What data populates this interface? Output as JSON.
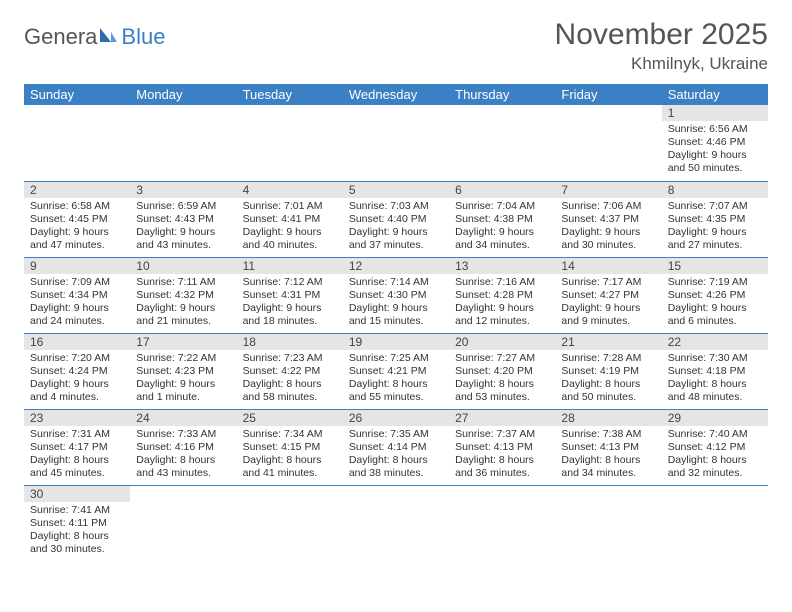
{
  "logo": {
    "text1": "Genera",
    "text2": "Blue"
  },
  "title": "November 2025",
  "location": "Khmilnyk, Ukraine",
  "colors": {
    "header_bg": "#3b7fc4",
    "header_text": "#ffffff",
    "daynum_bg": "#e5e5e5",
    "border": "#3b7fc4",
    "body_text": "#333333",
    "title_text": "#555555"
  },
  "weekdays": [
    "Sunday",
    "Monday",
    "Tuesday",
    "Wednesday",
    "Thursday",
    "Friday",
    "Saturday"
  ],
  "weeks": [
    [
      null,
      null,
      null,
      null,
      null,
      null,
      {
        "n": "1",
        "sr": "6:56 AM",
        "ss": "4:46 PM",
        "dl": "9 hours and 50 minutes."
      }
    ],
    [
      {
        "n": "2",
        "sr": "6:58 AM",
        "ss": "4:45 PM",
        "dl": "9 hours and 47 minutes."
      },
      {
        "n": "3",
        "sr": "6:59 AM",
        "ss": "4:43 PM",
        "dl": "9 hours and 43 minutes."
      },
      {
        "n": "4",
        "sr": "7:01 AM",
        "ss": "4:41 PM",
        "dl": "9 hours and 40 minutes."
      },
      {
        "n": "5",
        "sr": "7:03 AM",
        "ss": "4:40 PM",
        "dl": "9 hours and 37 minutes."
      },
      {
        "n": "6",
        "sr": "7:04 AM",
        "ss": "4:38 PM",
        "dl": "9 hours and 34 minutes."
      },
      {
        "n": "7",
        "sr": "7:06 AM",
        "ss": "4:37 PM",
        "dl": "9 hours and 30 minutes."
      },
      {
        "n": "8",
        "sr": "7:07 AM",
        "ss": "4:35 PM",
        "dl": "9 hours and 27 minutes."
      }
    ],
    [
      {
        "n": "9",
        "sr": "7:09 AM",
        "ss": "4:34 PM",
        "dl": "9 hours and 24 minutes."
      },
      {
        "n": "10",
        "sr": "7:11 AM",
        "ss": "4:32 PM",
        "dl": "9 hours and 21 minutes."
      },
      {
        "n": "11",
        "sr": "7:12 AM",
        "ss": "4:31 PM",
        "dl": "9 hours and 18 minutes."
      },
      {
        "n": "12",
        "sr": "7:14 AM",
        "ss": "4:30 PM",
        "dl": "9 hours and 15 minutes."
      },
      {
        "n": "13",
        "sr": "7:16 AM",
        "ss": "4:28 PM",
        "dl": "9 hours and 12 minutes."
      },
      {
        "n": "14",
        "sr": "7:17 AM",
        "ss": "4:27 PM",
        "dl": "9 hours and 9 minutes."
      },
      {
        "n": "15",
        "sr": "7:19 AM",
        "ss": "4:26 PM",
        "dl": "9 hours and 6 minutes."
      }
    ],
    [
      {
        "n": "16",
        "sr": "7:20 AM",
        "ss": "4:24 PM",
        "dl": "9 hours and 4 minutes."
      },
      {
        "n": "17",
        "sr": "7:22 AM",
        "ss": "4:23 PM",
        "dl": "9 hours and 1 minute."
      },
      {
        "n": "18",
        "sr": "7:23 AM",
        "ss": "4:22 PM",
        "dl": "8 hours and 58 minutes."
      },
      {
        "n": "19",
        "sr": "7:25 AM",
        "ss": "4:21 PM",
        "dl": "8 hours and 55 minutes."
      },
      {
        "n": "20",
        "sr": "7:27 AM",
        "ss": "4:20 PM",
        "dl": "8 hours and 53 minutes."
      },
      {
        "n": "21",
        "sr": "7:28 AM",
        "ss": "4:19 PM",
        "dl": "8 hours and 50 minutes."
      },
      {
        "n": "22",
        "sr": "7:30 AM",
        "ss": "4:18 PM",
        "dl": "8 hours and 48 minutes."
      }
    ],
    [
      {
        "n": "23",
        "sr": "7:31 AM",
        "ss": "4:17 PM",
        "dl": "8 hours and 45 minutes."
      },
      {
        "n": "24",
        "sr": "7:33 AM",
        "ss": "4:16 PM",
        "dl": "8 hours and 43 minutes."
      },
      {
        "n": "25",
        "sr": "7:34 AM",
        "ss": "4:15 PM",
        "dl": "8 hours and 41 minutes."
      },
      {
        "n": "26",
        "sr": "7:35 AM",
        "ss": "4:14 PM",
        "dl": "8 hours and 38 minutes."
      },
      {
        "n": "27",
        "sr": "7:37 AM",
        "ss": "4:13 PM",
        "dl": "8 hours and 36 minutes."
      },
      {
        "n": "28",
        "sr": "7:38 AM",
        "ss": "4:13 PM",
        "dl": "8 hours and 34 minutes."
      },
      {
        "n": "29",
        "sr": "7:40 AM",
        "ss": "4:12 PM",
        "dl": "8 hours and 32 minutes."
      }
    ],
    [
      {
        "n": "30",
        "sr": "7:41 AM",
        "ss": "4:11 PM",
        "dl": "8 hours and 30 minutes."
      },
      null,
      null,
      null,
      null,
      null,
      null
    ]
  ],
  "labels": {
    "sunrise": "Sunrise:",
    "sunset": "Sunset:",
    "daylight": "Daylight:"
  }
}
